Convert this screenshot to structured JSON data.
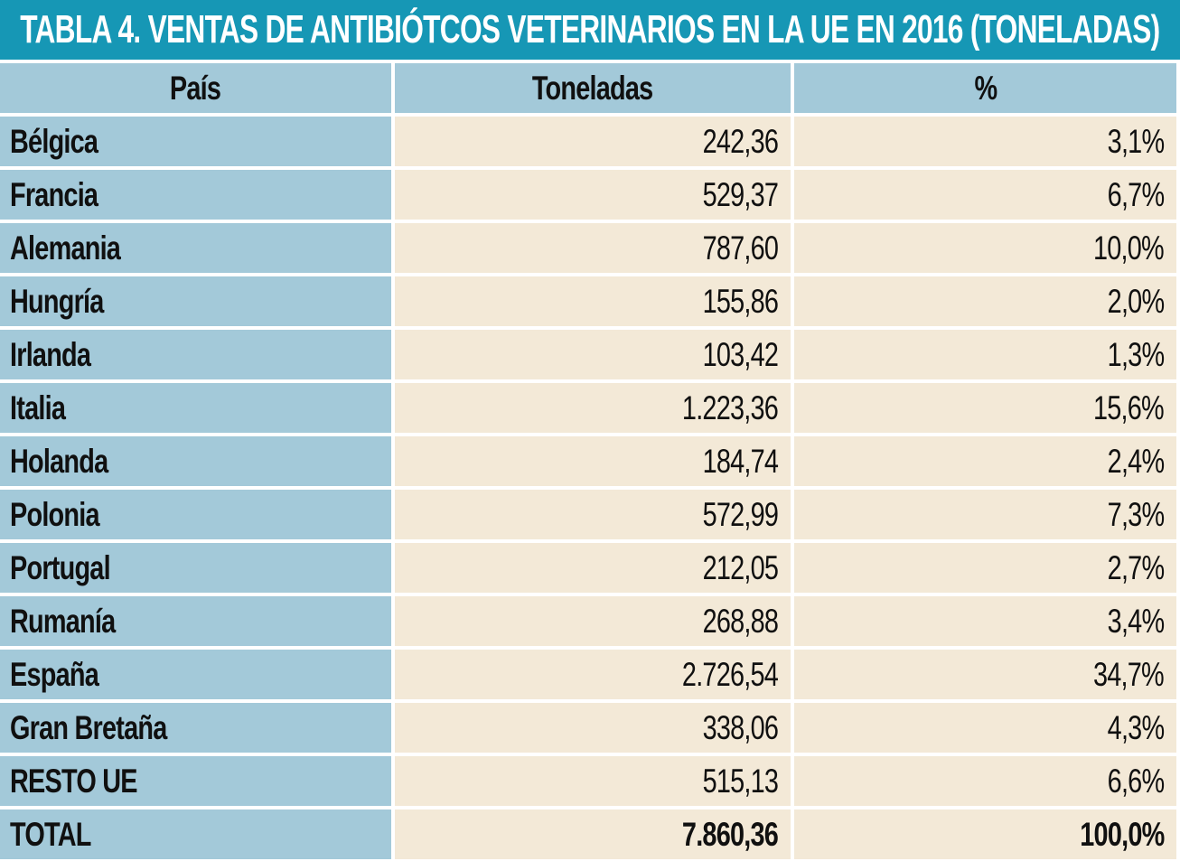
{
  "title": "TABLA 4. VENTAS DE ANTIBIÓTCOS VETERINARIOS EN LA UE EN 2016 (TONELADAS)",
  "columns": {
    "pais": "País",
    "toneladas": "Toneladas",
    "pct": "%"
  },
  "rows": [
    {
      "pais": "Bélgica",
      "toneladas": "242,36",
      "pct": "3,1%"
    },
    {
      "pais": "Francia",
      "toneladas": "529,37",
      "pct": "6,7%"
    },
    {
      "pais": "Alemania",
      "toneladas": "787,60",
      "pct": "10,0%"
    },
    {
      "pais": "Hungría",
      "toneladas": "155,86",
      "pct": "2,0%"
    },
    {
      "pais": "Irlanda",
      "toneladas": "103,42",
      "pct": "1,3%"
    },
    {
      "pais": "Italia",
      "toneladas": "1.223,36",
      "pct": "15,6%"
    },
    {
      "pais": "Holanda",
      "toneladas": "184,74",
      "pct": "2,4%"
    },
    {
      "pais": "Polonia",
      "toneladas": "572,99",
      "pct": "7,3%"
    },
    {
      "pais": "Portugal",
      "toneladas": "212,05",
      "pct": "2,7%"
    },
    {
      "pais": "Rumanía",
      "toneladas": "268,88",
      "pct": "3,4%"
    },
    {
      "pais": "España",
      "toneladas": "2.726,54",
      "pct": "34,7%"
    },
    {
      "pais": "Gran Bretaña",
      "toneladas": "338,06",
      "pct": "4,3%"
    },
    {
      "pais": "RESTO UE",
      "toneladas": "515,13",
      "pct": "6,6%"
    }
  ],
  "total": {
    "pais": "TOTAL",
    "toneladas": "7.860,36",
    "pct": "100,0%"
  },
  "colors": {
    "teal_title_bg": "#1697B5",
    "blue_cell_bg": "#A3C9D9",
    "cream_cell_bg": "#F3E9D7",
    "grid_line": "#FFFFFF",
    "title_text": "#FFFFFF",
    "cell_text": "#101010"
  },
  "chart_data": {
    "type": "table",
    "title": "TABLA 4. VENTAS DE ANTIBIÓTCOS VETERINARIOS EN LA UE EN 2016 (TONELADAS)",
    "columns": [
      "País",
      "Toneladas",
      "%"
    ],
    "categories": [
      "Bélgica",
      "Francia",
      "Alemania",
      "Hungría",
      "Irlanda",
      "Italia",
      "Holanda",
      "Polonia",
      "Portugal",
      "Rumanía",
      "España",
      "Gran Bretaña",
      "RESTO UE"
    ],
    "series": [
      {
        "name": "Toneladas",
        "values": [
          242.36,
          529.37,
          787.6,
          155.86,
          103.42,
          1223.36,
          184.74,
          572.99,
          212.05,
          268.88,
          2726.54,
          338.06,
          515.13
        ]
      },
      {
        "name": "%",
        "values": [
          3.1,
          6.7,
          10.0,
          2.0,
          1.3,
          15.6,
          2.4,
          7.3,
          2.7,
          3.4,
          34.7,
          4.3,
          6.6
        ]
      }
    ],
    "total": {
      "label": "TOTAL",
      "toneladas": 7860.36,
      "pct": 100.0
    }
  }
}
